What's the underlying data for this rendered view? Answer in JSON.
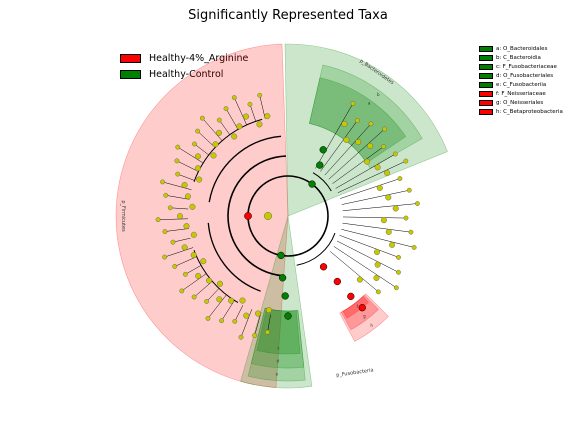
{
  "title": "Significantly Represented Taxa",
  "legend": [
    {
      "label": "Healthy-4%_Arginine",
      "color": "#ff0000"
    },
    {
      "label": "Healthy-Control",
      "color": "#008000"
    }
  ],
  "key": [
    {
      "text": "a: O_Bacteroidales",
      "color": "#008000"
    },
    {
      "text": "b: C_Bacteroidia",
      "color": "#008000"
    },
    {
      "text": "c: F_Fusobacteriaceae",
      "color": "#008000"
    },
    {
      "text": "d: O_Fusobacteriales",
      "color": "#008000"
    },
    {
      "text": "e: C_Fusobacteriia",
      "color": "#008000"
    },
    {
      "text": "f: F_Neisseriaceae",
      "color": "#ff0000"
    },
    {
      "text": "g: O_Neisseriales",
      "color": "#ff0000"
    },
    {
      "text": "h: C_Betaproteobacteria",
      "color": "#ff0000"
    }
  ],
  "sectors": [
    {
      "name": "p_Firmicutes",
      "color": "#ff0000",
      "start": 94,
      "end": 268
    },
    {
      "name": "p_Bacteroidetes",
      "color": "#008000",
      "start": 269,
      "end": 338
    },
    {
      "name": "p_Fusobacteria",
      "color": "#008000",
      "start": 82,
      "end": 106
    },
    {
      "name": "b",
      "color": "#008000",
      "start": 283,
      "end": 330
    },
    {
      "name": "a",
      "color": "#008000",
      "start": 283,
      "end": 326
    },
    {
      "name": "e",
      "color": "#008000",
      "start": 84,
      "end": 104
    },
    {
      "name": "d",
      "color": "#008000",
      "start": 84,
      "end": 104
    },
    {
      "name": "c",
      "color": "#008000",
      "start": 85,
      "end": 103
    },
    {
      "name": "h",
      "color": "#ff0000",
      "start": 45,
      "end": 62
    },
    {
      "name": "g",
      "color": "#ff0000",
      "start": 46,
      "end": 61
    },
    {
      "name": "f",
      "color": "#ff0000",
      "start": 47,
      "end": 60
    }
  ],
  "phylum_labels": [
    "p_Firmicutes",
    "p_Bacteroidetes",
    "p_Fusobacteria"
  ]
}
